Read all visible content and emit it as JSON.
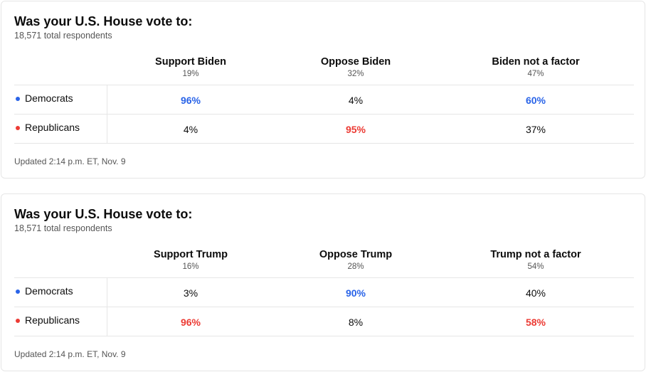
{
  "colors": {
    "democrat": "#2a64e8",
    "republican": "#ec3b34"
  },
  "polls": [
    {
      "title": "Was your U.S. House vote to:",
      "respondents": "18,571 total respondents",
      "columns": [
        {
          "label": "Support Biden",
          "share": "19%"
        },
        {
          "label": "Oppose Biden",
          "share": "32%"
        },
        {
          "label": "Biden not a factor",
          "share": "47%"
        }
      ],
      "rows": [
        {
          "party": "Democrats",
          "values": [
            "96%",
            "4%",
            "60%"
          ]
        },
        {
          "party": "Republicans",
          "values": [
            "4%",
            "95%",
            "37%"
          ]
        }
      ],
      "updated": "Updated 2:14 p.m. ET, Nov. 9"
    },
    {
      "title": "Was your U.S. House vote to:",
      "respondents": "18,571 total respondents",
      "columns": [
        {
          "label": "Support Trump",
          "share": "16%"
        },
        {
          "label": "Oppose Trump",
          "share": "28%"
        },
        {
          "label": "Trump not a factor",
          "share": "54%"
        }
      ],
      "rows": [
        {
          "party": "Democrats",
          "values": [
            "3%",
            "90%",
            "40%"
          ]
        },
        {
          "party": "Republicans",
          "values": [
            "96%",
            "8%",
            "58%"
          ]
        }
      ],
      "updated": "Updated 2:14 p.m. ET, Nov. 9"
    }
  ]
}
